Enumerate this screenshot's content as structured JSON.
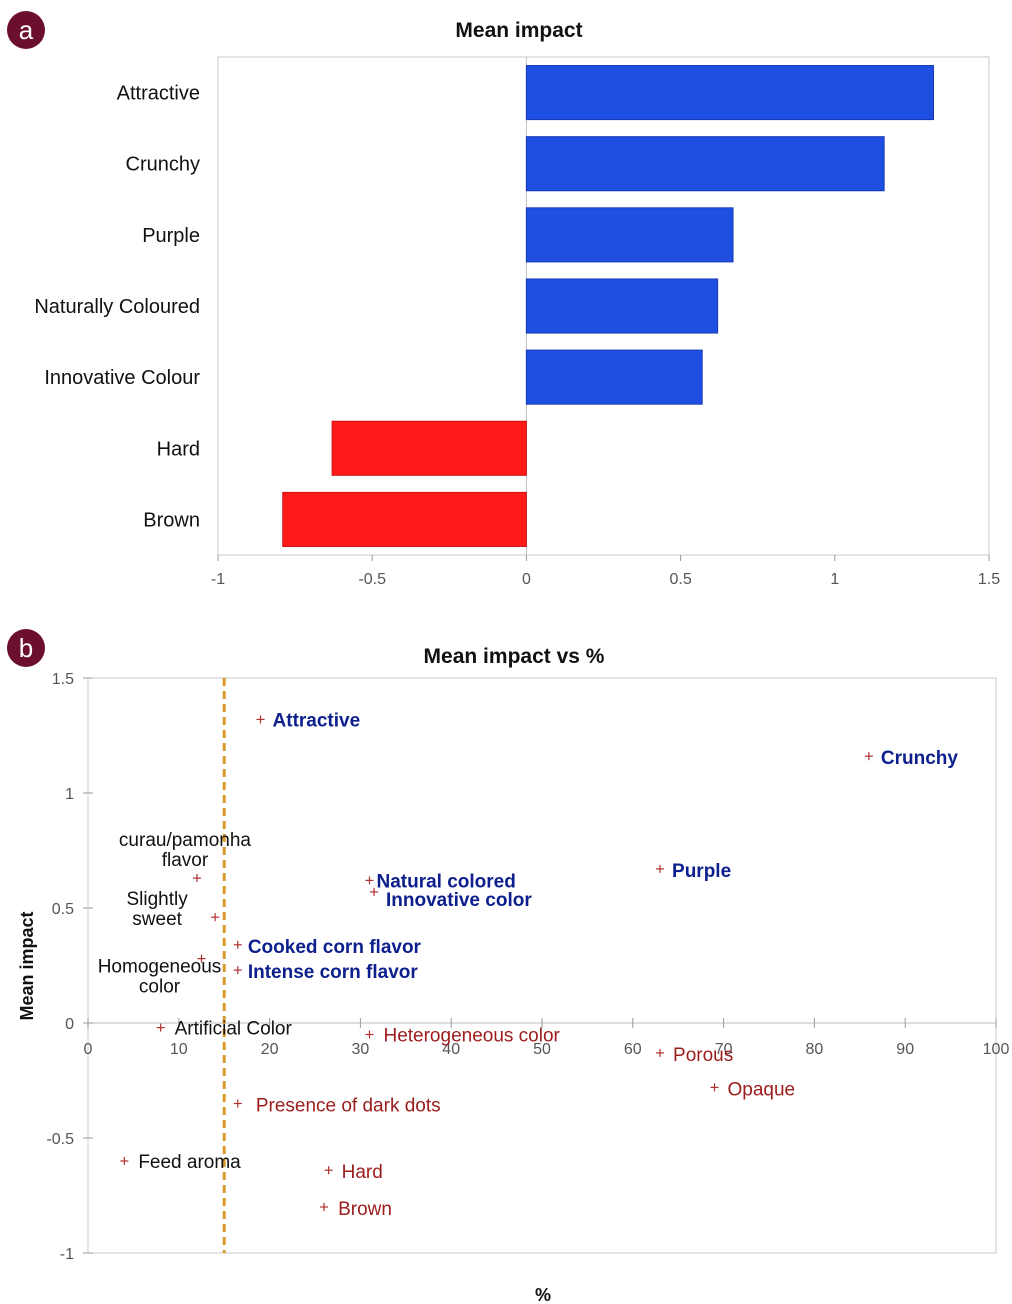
{
  "panel_a_letter": "a",
  "panel_b_letter": "b",
  "colors": {
    "positive": "#1f4fe0",
    "negative": "#ff1a1a",
    "badge": "#6b0f2c",
    "blue_text": "#0d1f8c",
    "red_text": "#9c1c1c",
    "black_text": "#111111",
    "marker": "#b03030",
    "threshold": "#d99a2b"
  },
  "chart_data": [
    {
      "type": "bar",
      "orientation": "horizontal",
      "title": "Mean impact",
      "categories": [
        "Attractive",
        "Crunchy",
        "Purple",
        "Naturally Coloured",
        "Innovative Colour",
        "Hard",
        "Brown"
      ],
      "values": [
        1.32,
        1.16,
        0.67,
        0.62,
        0.57,
        -0.63,
        -0.79
      ],
      "xlim": [
        -1,
        1.5
      ],
      "xticks": [
        "-1",
        "-0.5",
        "0",
        "0.5",
        "1",
        "1.5"
      ],
      "xtick_values": [
        -1,
        -0.5,
        0,
        0.5,
        1,
        1.5
      ],
      "legend": "none",
      "grid": false
    },
    {
      "type": "scatter",
      "title": "Mean impact vs %",
      "xlabel": "%",
      "ylabel": "Mean impact",
      "xlim": [
        0,
        100
      ],
      "ylim": [
        -1,
        1.5
      ],
      "xticks": [
        "0",
        "10",
        "20",
        "30",
        "40",
        "50",
        "60",
        "70",
        "80",
        "90",
        "100"
      ],
      "xtick_values": [
        0,
        10,
        20,
        30,
        40,
        50,
        60,
        70,
        80,
        90,
        100
      ],
      "yticks": [
        "1.5",
        "1",
        "0.5",
        "0",
        "-0.5",
        "-1"
      ],
      "ytick_values": [
        1.5,
        1,
        0.5,
        0,
        -0.5,
        -1
      ],
      "threshold_x": 15,
      "grid": false,
      "points": [
        {
          "label": "Attractive",
          "x": 19,
          "y": 1.32,
          "style": "blue"
        },
        {
          "label": "Crunchy",
          "x": 86,
          "y": 1.16,
          "style": "blue"
        },
        {
          "label": "curau/pamonha flavor",
          "x": 12,
          "y": 0.63,
          "style": "black"
        },
        {
          "label": "Natural colored",
          "x": 31,
          "y": 0.62,
          "style": "blue"
        },
        {
          "label": "Innovative color",
          "x": 31.5,
          "y": 0.57,
          "style": "blue"
        },
        {
          "label": "Purple",
          "x": 63,
          "y": 0.67,
          "style": "blue"
        },
        {
          "label": "Slightly sweet",
          "x": 14,
          "y": 0.46,
          "style": "black"
        },
        {
          "label": "Cooked corn flavor",
          "x": 16.5,
          "y": 0.34,
          "style": "blue"
        },
        {
          "label": "Homogeneous color",
          "x": 12.5,
          "y": 0.28,
          "style": "black"
        },
        {
          "label": "Intense corn flavor",
          "x": 16.5,
          "y": 0.23,
          "style": "blue"
        },
        {
          "label": "Artificial Color",
          "x": 8,
          "y": -0.02,
          "style": "black"
        },
        {
          "label": "Heterogeneous color",
          "x": 31,
          "y": -0.05,
          "style": "red"
        },
        {
          "label": "Porous",
          "x": 63,
          "y": -0.13,
          "style": "red"
        },
        {
          "label": "Opaque",
          "x": 69,
          "y": -0.28,
          "style": "red"
        },
        {
          "label": "Presence of dark dots",
          "x": 16.5,
          "y": -0.35,
          "style": "red"
        },
        {
          "label": "Feed aroma",
          "x": 4,
          "y": -0.6,
          "style": "black"
        },
        {
          "label": "Hard",
          "x": 26.5,
          "y": -0.64,
          "style": "red"
        },
        {
          "label": "Brown",
          "x": 26,
          "y": -0.8,
          "style": "red"
        }
      ]
    }
  ]
}
